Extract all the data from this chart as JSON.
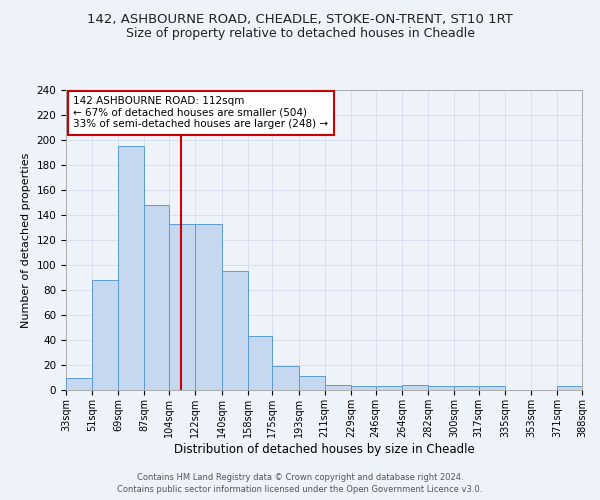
{
  "title": "142, ASHBOURNE ROAD, CHEADLE, STOKE-ON-TRENT, ST10 1RT",
  "subtitle": "Size of property relative to detached houses in Cheadle",
  "xlabel": "Distribution of detached houses by size in Cheadle",
  "ylabel": "Number of detached properties",
  "bin_edges": [
    33,
    51,
    69,
    87,
    104,
    122,
    140,
    158,
    175,
    193,
    211,
    229,
    246,
    264,
    282,
    300,
    317,
    335,
    353,
    371,
    388
  ],
  "bar_heights": [
    10,
    88,
    195,
    148,
    133,
    133,
    95,
    43,
    19,
    11,
    4,
    3,
    3,
    4,
    3,
    3,
    3,
    0,
    0,
    3
  ],
  "bar_color": "#c5d8f0",
  "bar_edge_color": "#5b9bd5",
  "background_color": "#eef2f9",
  "grid_color": "#d0d8e8",
  "vline_x": 112,
  "vline_color": "#cc0000",
  "annotation_line1": "142 ASHBOURNE ROAD: 112sqm",
  "annotation_line2": "← 67% of detached houses are smaller (504)",
  "annotation_line3": "33% of semi-detached houses are larger (248) →",
  "annotation_box_facecolor": "#ffffff",
  "annotation_box_edgecolor": "#cc0000",
  "ylim": [
    0,
    240
  ],
  "yticks": [
    0,
    20,
    40,
    60,
    80,
    100,
    120,
    140,
    160,
    180,
    200,
    220,
    240
  ],
  "tick_labels": [
    "33sqm",
    "51sqm",
    "69sqm",
    "87sqm",
    "104sqm",
    "122sqm",
    "140sqm",
    "158sqm",
    "175sqm",
    "193sqm",
    "211sqm",
    "229sqm",
    "246sqm",
    "264sqm",
    "282sqm",
    "300sqm",
    "317sqm",
    "335sqm",
    "353sqm",
    "371sqm",
    "388sqm"
  ],
  "footer_line1": "Contains HM Land Registry data © Crown copyright and database right 2024.",
  "footer_line2": "Contains public sector information licensed under the Open Government Licence v3.0.",
  "title_fontsize": 9.5,
  "subtitle_fontsize": 9.0,
  "ylabel_fontsize": 8.0,
  "xlabel_fontsize": 8.5
}
